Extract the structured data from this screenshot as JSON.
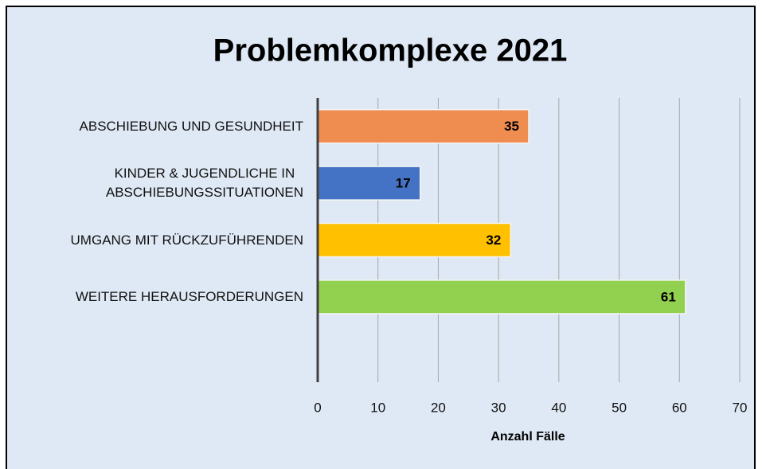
{
  "chart_data": {
    "type": "bar",
    "orientation": "horizontal",
    "title": "Problemkomplexe 2021",
    "x_label": "Anzahl Fälle",
    "categories": [
      "ABSCHIEBUNG UND GESUNDHEIT",
      "KINDER & JUGENDLICHE IN\nABSCHIEBUNGSSITUATIONEN",
      "UMGANG MIT RÜCKZUFÜHRENDEN",
      "WEITERE HERAUSFORDERUNGEN",
      null
    ],
    "values": [
      35,
      17,
      32,
      61,
      null
    ],
    "colors": [
      "#ef8c50",
      "#4472c4",
      "#ffc000",
      "#92d050",
      null
    ],
    "xlim": [
      0,
      70
    ],
    "xticks": [
      0,
      10,
      20,
      30,
      40,
      50,
      60,
      70
    ],
    "grid": true
  }
}
